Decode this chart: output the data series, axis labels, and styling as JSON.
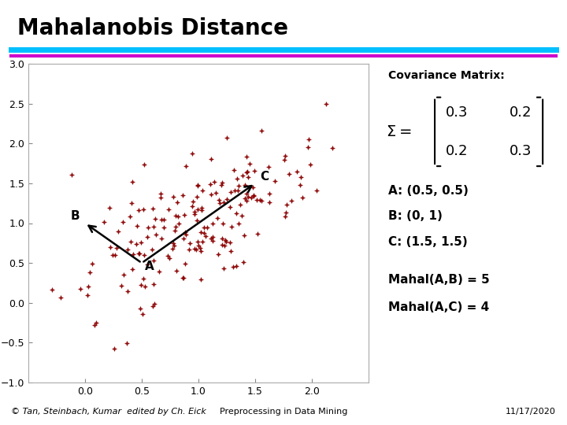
{
  "title": "Mahalanobis Distance",
  "line1_color": "#00BFFF",
  "line2_color": "#CC00CC",
  "scatter_color": "#8B0000",
  "point_A": [
    0.5,
    0.5
  ],
  "point_B": [
    0.0,
    1.0
  ],
  "point_C": [
    1.5,
    1.5
  ],
  "cov_matrix": [
    [
      0.3,
      0.2
    ],
    [
      0.2,
      0.3
    ]
  ],
  "xlim": [
    -0.5,
    2.5
  ],
  "ylim": [
    -1.0,
    3.0
  ],
  "xticks": [
    0.0,
    0.5,
    1.0,
    1.5,
    2.0
  ],
  "yticks": [
    -1.0,
    -0.5,
    0.0,
    0.5,
    1.0,
    1.5,
    2.0,
    2.5,
    3.0
  ],
  "bg_color": "#ffffff",
  "n_points": 200,
  "seed": 42,
  "mean": [
    1.0,
    1.0
  ],
  "footer_left": "© Tan, Steinbach, Kumar  edited by Ch. Eick",
  "footer_center": "Preprocessing in Data Mining",
  "footer_right": "11/17/2020"
}
